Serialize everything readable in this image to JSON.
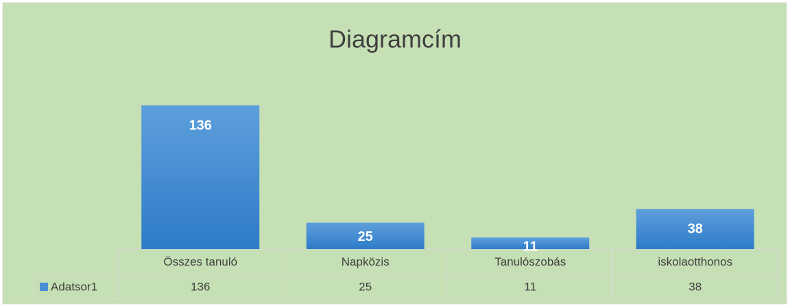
{
  "chart_data": {
    "type": "bar",
    "title": "Diagramcím",
    "categories": [
      "Összes tanuló",
      "Napközis",
      "Tanulószobás",
      "iskolaotthonos"
    ],
    "series": [
      {
        "name": "Adatsor1",
        "color": "#4a8fd4",
        "values": [
          136,
          25,
          11,
          38
        ]
      }
    ],
    "data_table": true
  }
}
